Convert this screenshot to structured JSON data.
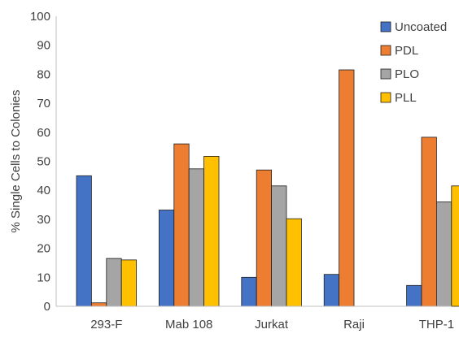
{
  "chart_data": {
    "type": "bar",
    "title": "",
    "xlabel": "",
    "ylabel": "% Single Cells to Colonies",
    "ylim": [
      0,
      100
    ],
    "yticks": [
      0,
      10,
      20,
      30,
      40,
      50,
      60,
      70,
      80,
      90,
      100
    ],
    "grid": false,
    "legend_position": "top-right",
    "categories": [
      "293-F",
      "Mab 108",
      "Jurkat",
      "Raji",
      "THP-1"
    ],
    "series": [
      {
        "name": "Uncoated",
        "color": "#4472C4",
        "values": [
          45,
          33.2,
          10,
          11,
          7.2
        ]
      },
      {
        "name": "PDL",
        "color": "#ED7D31",
        "values": [
          1.2,
          56,
          47,
          81.5,
          58.3
        ]
      },
      {
        "name": "PLO",
        "color": "#A5A5A5",
        "values": [
          16.5,
          47.4,
          41.5,
          0,
          36
        ]
      },
      {
        "name": "PLL",
        "color": "#FFC000",
        "values": [
          16,
          51.7,
          30.2,
          0,
          41.5
        ]
      }
    ]
  }
}
